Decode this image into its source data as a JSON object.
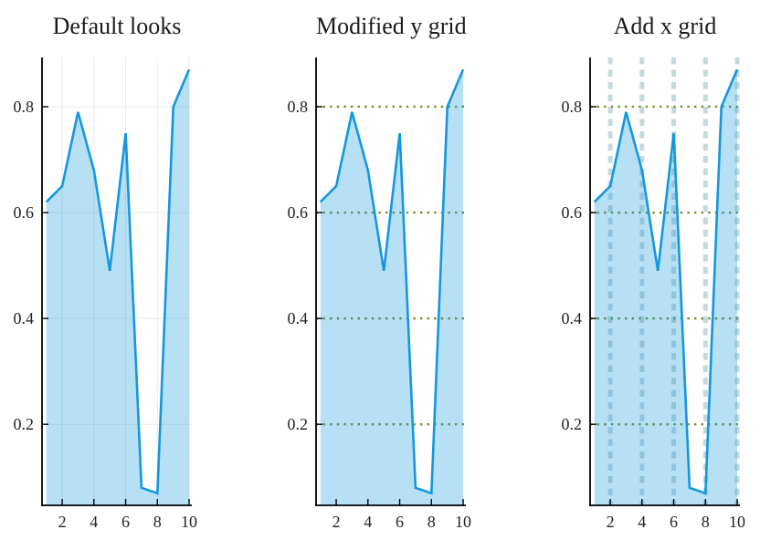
{
  "figure": {
    "background": "#ffffff"
  },
  "chart_data": [
    {
      "type": "area",
      "title": "Default looks",
      "x": [
        1,
        2,
        3,
        4,
        5,
        6,
        7,
        8,
        9,
        10
      ],
      "values": [
        0.62,
        0.65,
        0.79,
        0.68,
        0.49,
        0.75,
        0.08,
        0.07,
        0.8,
        0.87
      ],
      "xlabel": "",
      "ylabel": "",
      "xlim": [
        0.73,
        10.17
      ],
      "ylim": [
        0.047,
        0.893
      ],
      "xticks": [
        2,
        4,
        6,
        8,
        10
      ],
      "xtick_labels": [
        "2",
        "4",
        "6",
        "8",
        "10"
      ],
      "yticks": [
        0.2,
        0.4,
        0.6,
        0.8
      ],
      "ytick_labels": [
        "0.2",
        "0.4",
        "0.6",
        "0.8"
      ],
      "grid": {
        "x": {
          "show": true,
          "style": "solid",
          "color": "#e9e9e9",
          "width": 1
        },
        "y": {
          "show": true,
          "style": "solid",
          "color": "#e9e9e9",
          "width": 1
        }
      },
      "line_color": "#1497dd",
      "line_width": 2.6,
      "fill_color": "#1497dd",
      "fill_opacity": 0.3,
      "axis_color": "#000000",
      "legend": "none"
    },
    {
      "type": "area",
      "title": "Modified y grid",
      "x": [
        1,
        2,
        3,
        4,
        5,
        6,
        7,
        8,
        9,
        10
      ],
      "values": [
        0.62,
        0.65,
        0.79,
        0.68,
        0.49,
        0.75,
        0.08,
        0.07,
        0.8,
        0.87
      ],
      "xlabel": "",
      "ylabel": "",
      "xlim": [
        0.73,
        10.17
      ],
      "ylim": [
        0.047,
        0.893
      ],
      "xticks": [
        2,
        4,
        6,
        8,
        10
      ],
      "xtick_labels": [
        "2",
        "4",
        "6",
        "8",
        "10"
      ],
      "yticks": [
        0.2,
        0.4,
        0.6,
        0.8
      ],
      "ytick_labels": [
        "0.2",
        "0.4",
        "0.6",
        "0.8"
      ],
      "grid": {
        "x": {
          "show": false,
          "style": "none",
          "color": "",
          "width": 0
        },
        "y": {
          "show": true,
          "style": "dotted",
          "color": "#728d2e",
          "width": 2.4
        }
      },
      "line_color": "#1497dd",
      "line_width": 2.6,
      "fill_color": "#1497dd",
      "fill_opacity": 0.3,
      "axis_color": "#000000",
      "legend": "none"
    },
    {
      "type": "area",
      "title": "Add x grid",
      "x": [
        1,
        2,
        3,
        4,
        5,
        6,
        7,
        8,
        9,
        10
      ],
      "values": [
        0.62,
        0.65,
        0.79,
        0.68,
        0.49,
        0.75,
        0.08,
        0.07,
        0.8,
        0.87
      ],
      "xlabel": "",
      "ylabel": "",
      "xlim": [
        0.73,
        10.17
      ],
      "ylim": [
        0.047,
        0.893
      ],
      "xticks": [
        2,
        4,
        6,
        8,
        10
      ],
      "xtick_labels": [
        "2",
        "4",
        "6",
        "8",
        "10"
      ],
      "yticks": [
        0.2,
        0.4,
        0.6,
        0.8
      ],
      "ytick_labels": [
        "0.2",
        "0.4",
        "0.6",
        "0.8"
      ],
      "grid": {
        "x": {
          "show": true,
          "style": "dashed",
          "color": "#c5d8de",
          "width": 5
        },
        "y": {
          "show": true,
          "style": "dotted",
          "color": "#728d2e",
          "width": 2.4
        }
      },
      "line_color": "#1497dd",
      "line_width": 2.6,
      "fill_color": "#1497dd",
      "fill_opacity": 0.3,
      "axis_color": "#000000",
      "legend": "none"
    }
  ]
}
